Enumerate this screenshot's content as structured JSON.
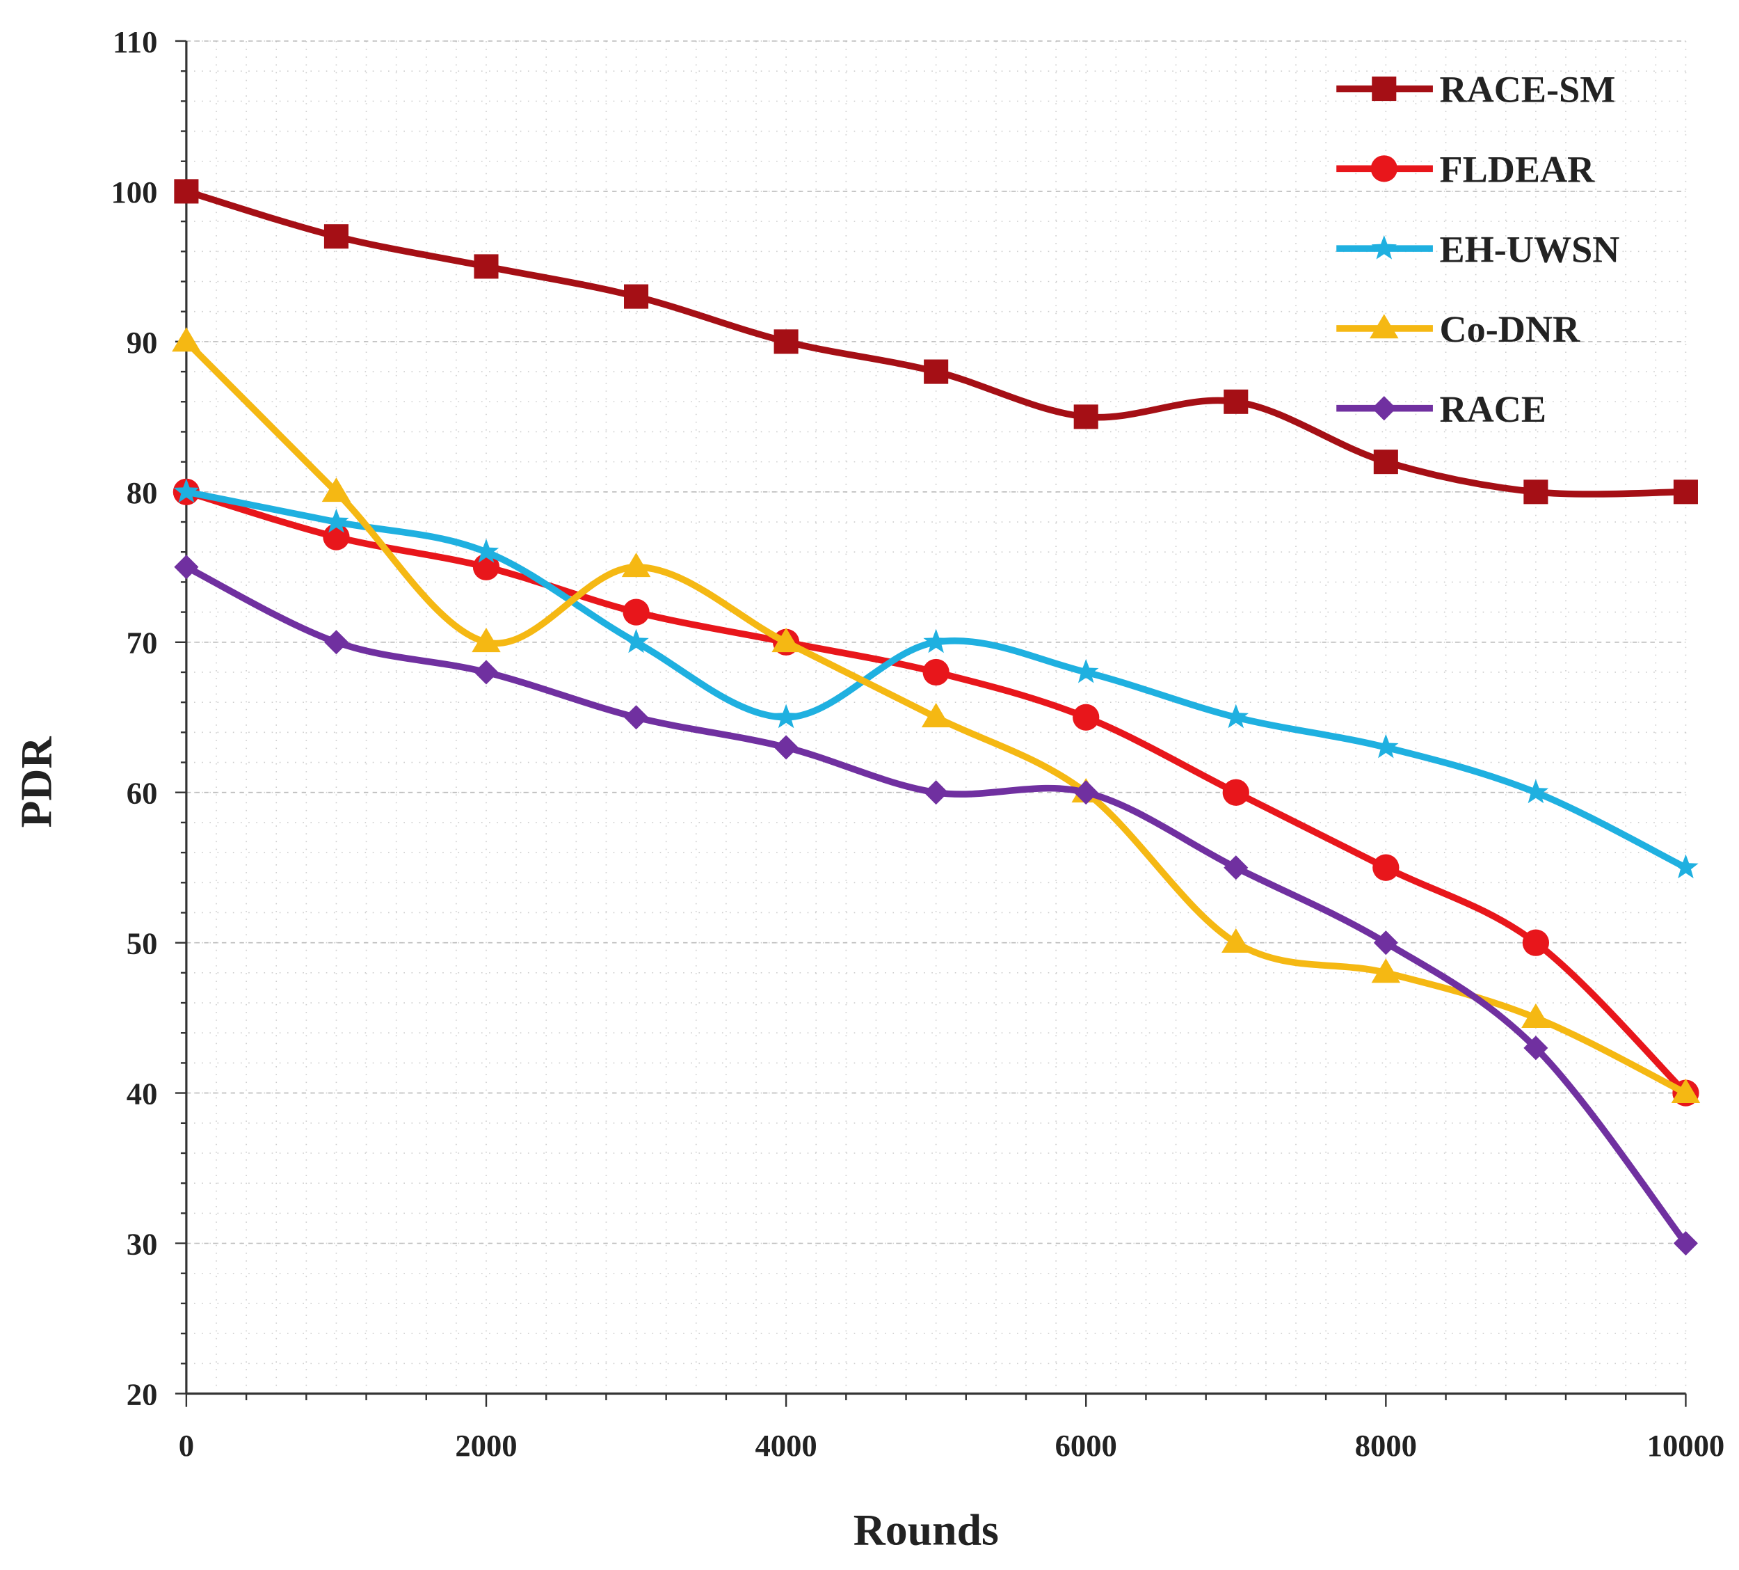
{
  "chart_data": {
    "type": "line",
    "title": "",
    "xlabel": "Rounds",
    "ylabel": "PDR",
    "x": [
      0,
      1000,
      2000,
      3000,
      4000,
      5000,
      6000,
      7000,
      8000,
      9000,
      10000
    ],
    "xlim": [
      0,
      10000
    ],
    "ylim": [
      20,
      110
    ],
    "xticks": [
      0,
      2000,
      4000,
      6000,
      8000,
      10000
    ],
    "yticks": [
      20,
      30,
      40,
      50,
      60,
      70,
      80,
      90,
      100,
      110
    ],
    "grid": true,
    "smooth": true,
    "legend_position": "top-right",
    "series": [
      {
        "name": "RACE-SM",
        "color": "#a50f15",
        "marker": "square",
        "values": [
          100,
          97,
          95,
          93,
          90,
          88,
          85,
          86,
          82,
          80,
          80
        ]
      },
      {
        "name": "FLDEAR",
        "color": "#e8161b",
        "marker": "circle",
        "values": [
          80,
          77,
          75,
          72,
          70,
          68,
          65,
          60,
          55,
          50,
          40
        ]
      },
      {
        "name": "EH-UWSN",
        "color": "#1fb0e0",
        "marker": "star",
        "values": [
          80,
          78,
          76,
          70,
          65,
          70,
          68,
          65,
          63,
          60,
          55
        ]
      },
      {
        "name": "Co-DNR",
        "color": "#f5b813",
        "marker": "triangle",
        "values": [
          90,
          80,
          70,
          75,
          70,
          65,
          60,
          50,
          48,
          45,
          40
        ]
      },
      {
        "name": "RACE",
        "color": "#7030a0",
        "marker": "diamond",
        "values": [
          75,
          70,
          68,
          65,
          63,
          60,
          60,
          55,
          50,
          43,
          30
        ]
      }
    ]
  }
}
